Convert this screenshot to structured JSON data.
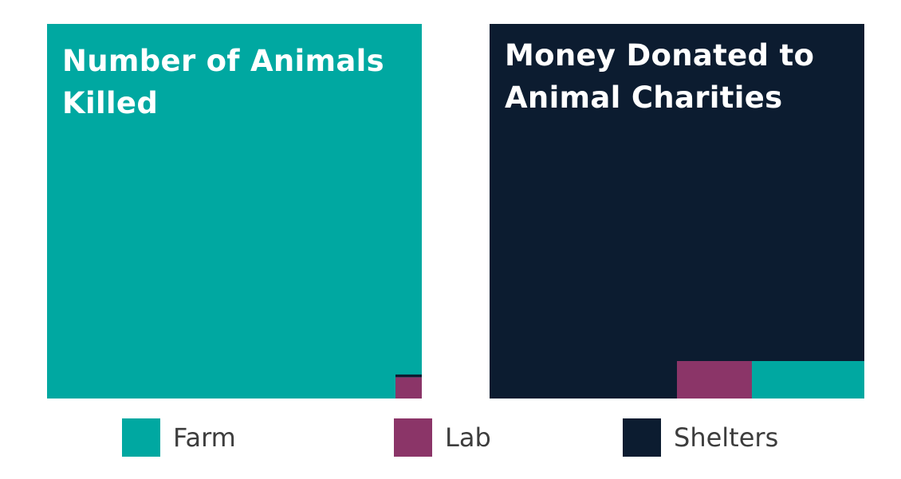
{
  "chart_data": [
    {
      "type": "treemap",
      "title": "Number of Animals Killed",
      "segments": [
        {
          "name": "Farm",
          "share": 0.9955,
          "color": "#00a8a1"
        },
        {
          "name": "Lab",
          "share": 0.004,
          "color": "#8b3568"
        },
        {
          "name": "Shelters",
          "share": 0.0005,
          "color": "#0c1c30"
        }
      ]
    },
    {
      "type": "treemap",
      "title": "Money Donated to Animal Charities",
      "segments": [
        {
          "name": "Shelters",
          "share": 0.95,
          "color": "#0c1c30"
        },
        {
          "name": "Lab",
          "share": 0.02,
          "color": "#8b3568"
        },
        {
          "name": "Farm",
          "share": 0.03,
          "color": "#00a8a1"
        }
      ]
    }
  ],
  "legend": [
    {
      "name": "Farm",
      "color": "#00a8a1"
    },
    {
      "name": "Lab",
      "color": "#8b3568"
    },
    {
      "name": "Shelters",
      "color": "#0c1c30"
    }
  ]
}
